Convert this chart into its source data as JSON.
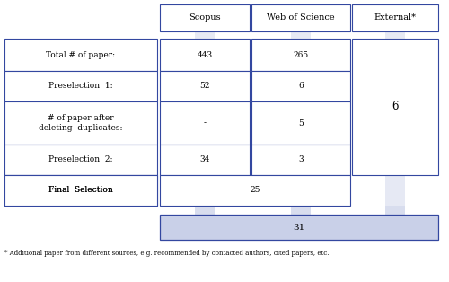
{
  "footnote": "* Additional paper from different sources, e.g. recommended by contacted authors, cited papers, etc.",
  "col_headers": [
    "Scopus",
    "Web of Science",
    "External*"
  ],
  "row_labels": [
    "Total # of paper:",
    "Preselection  1:",
    "# of paper after\ndeleting  duplicates:",
    "Preselection  2:",
    "Final  Selection"
  ],
  "cells": [
    [
      "443",
      "265"
    ],
    [
      "52",
      "6"
    ],
    [
      "-",
      "5"
    ],
    [
      "34",
      "3"
    ],
    [
      "25",
      ""
    ]
  ],
  "external_value": "6",
  "final_value": "31",
  "light_blue": "#c9d0e8",
  "white": "#ffffff",
  "border_color": "#3347a0",
  "font_size": 6.5,
  "header_font_size": 7.0,
  "footnote_font_size": 5.0
}
